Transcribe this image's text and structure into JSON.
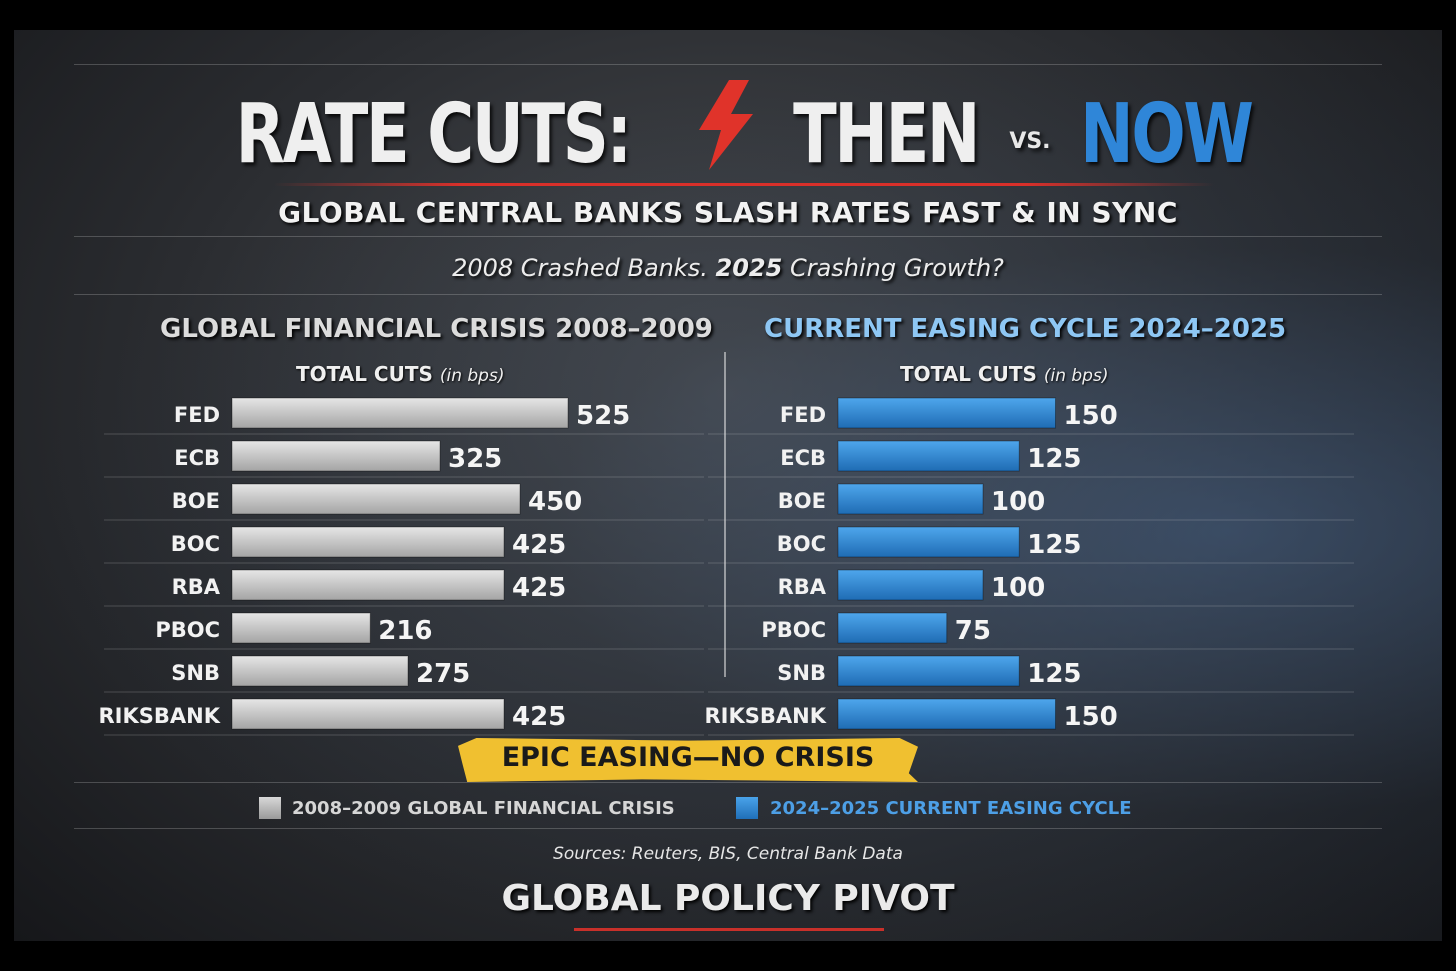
{
  "header": {
    "title_part1": "RATE CUTS:",
    "title_then": "THEN",
    "title_vs": "VS.",
    "title_now": "NOW",
    "subtitle": "GLOBAL CENTRAL BANKS SLASH RATES FAST & IN SYNC",
    "tagline_a": "2008 Crashed Banks.",
    "tagline_b": "2025",
    "tagline_c": "Crashing Growth?"
  },
  "chart_data": [
    {
      "type": "bar",
      "orientation": "horizontal",
      "title": "GLOBAL FINANCIAL CRISIS 2008–2009",
      "unit_label": "TOTAL CUTS",
      "unit_note": "(in bps)",
      "categories": [
        "FED",
        "ECB",
        "BOE",
        "BOC",
        "RBA",
        "PBOC",
        "SNB",
        "RIKSBANK"
      ],
      "values": [
        525,
        325,
        450,
        425,
        425,
        216,
        275,
        425
      ],
      "color": "#c8c8c8"
    },
    {
      "type": "bar",
      "orientation": "horizontal",
      "title": "CURRENT EASING CYCLE 2024–2025",
      "unit_label": "TOTAL CUTS",
      "unit_note": "(in bps)",
      "categories": [
        "FED",
        "ECB",
        "BOE",
        "BOC",
        "RBA",
        "PBOC",
        "SNB",
        "RIKSBANK"
      ],
      "values": [
        150,
        125,
        100,
        125,
        100,
        75,
        125,
        150
      ],
      "color": "#2f86d8"
    }
  ],
  "banner": "EPIC EASING—NO CRISIS",
  "legend": {
    "gfc": "2008–2009 GLOBAL FINANCIAL CRISIS",
    "now": "2024–2025 CURRENT EASING CYCLE"
  },
  "sources": "Sources: Reuters, BIS, Central Bank Data",
  "footer": "GLOBAL POLICY PIVOT",
  "colors": {
    "accent_blue": "#2f86d8",
    "accent_red": "#d9302a",
    "banner_yellow": "#f0c030"
  }
}
